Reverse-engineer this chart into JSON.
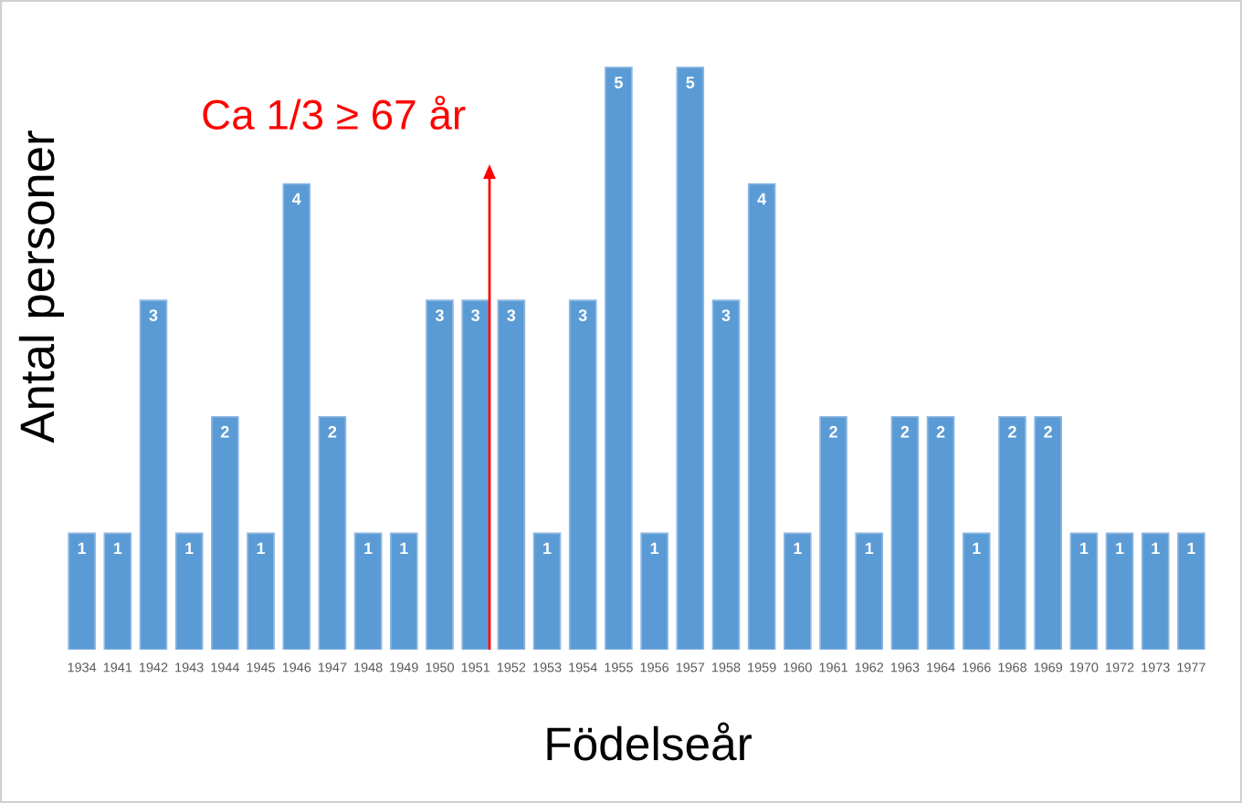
{
  "chart_data": {
    "type": "bar",
    "xlabel": "Födelseår",
    "ylabel": "Antal personer",
    "categories": [
      "1934",
      "1941",
      "1942",
      "1943",
      "1944",
      "1945",
      "1946",
      "1947",
      "1948",
      "1949",
      "1950",
      "1951",
      "1952",
      "1953",
      "1954",
      "1955",
      "1956",
      "1957",
      "1958",
      "1959",
      "1960",
      "1961",
      "1962",
      "1963",
      "1964",
      "1966",
      "1968",
      "1969",
      "1970",
      "1972",
      "1973",
      "1977"
    ],
    "values": [
      1,
      1,
      3,
      1,
      2,
      1,
      4,
      2,
      1,
      1,
      3,
      3,
      3,
      1,
      3,
      5,
      1,
      5,
      3,
      4,
      1,
      2,
      1,
      2,
      2,
      1,
      2,
      2,
      1,
      1,
      1,
      1
    ],
    "color": "#5b9bd5",
    "data_labels": true,
    "tick_labels": "x",
    "annotations": [
      "Ca 1/3 ≥ 67 år"
    ]
  }
}
